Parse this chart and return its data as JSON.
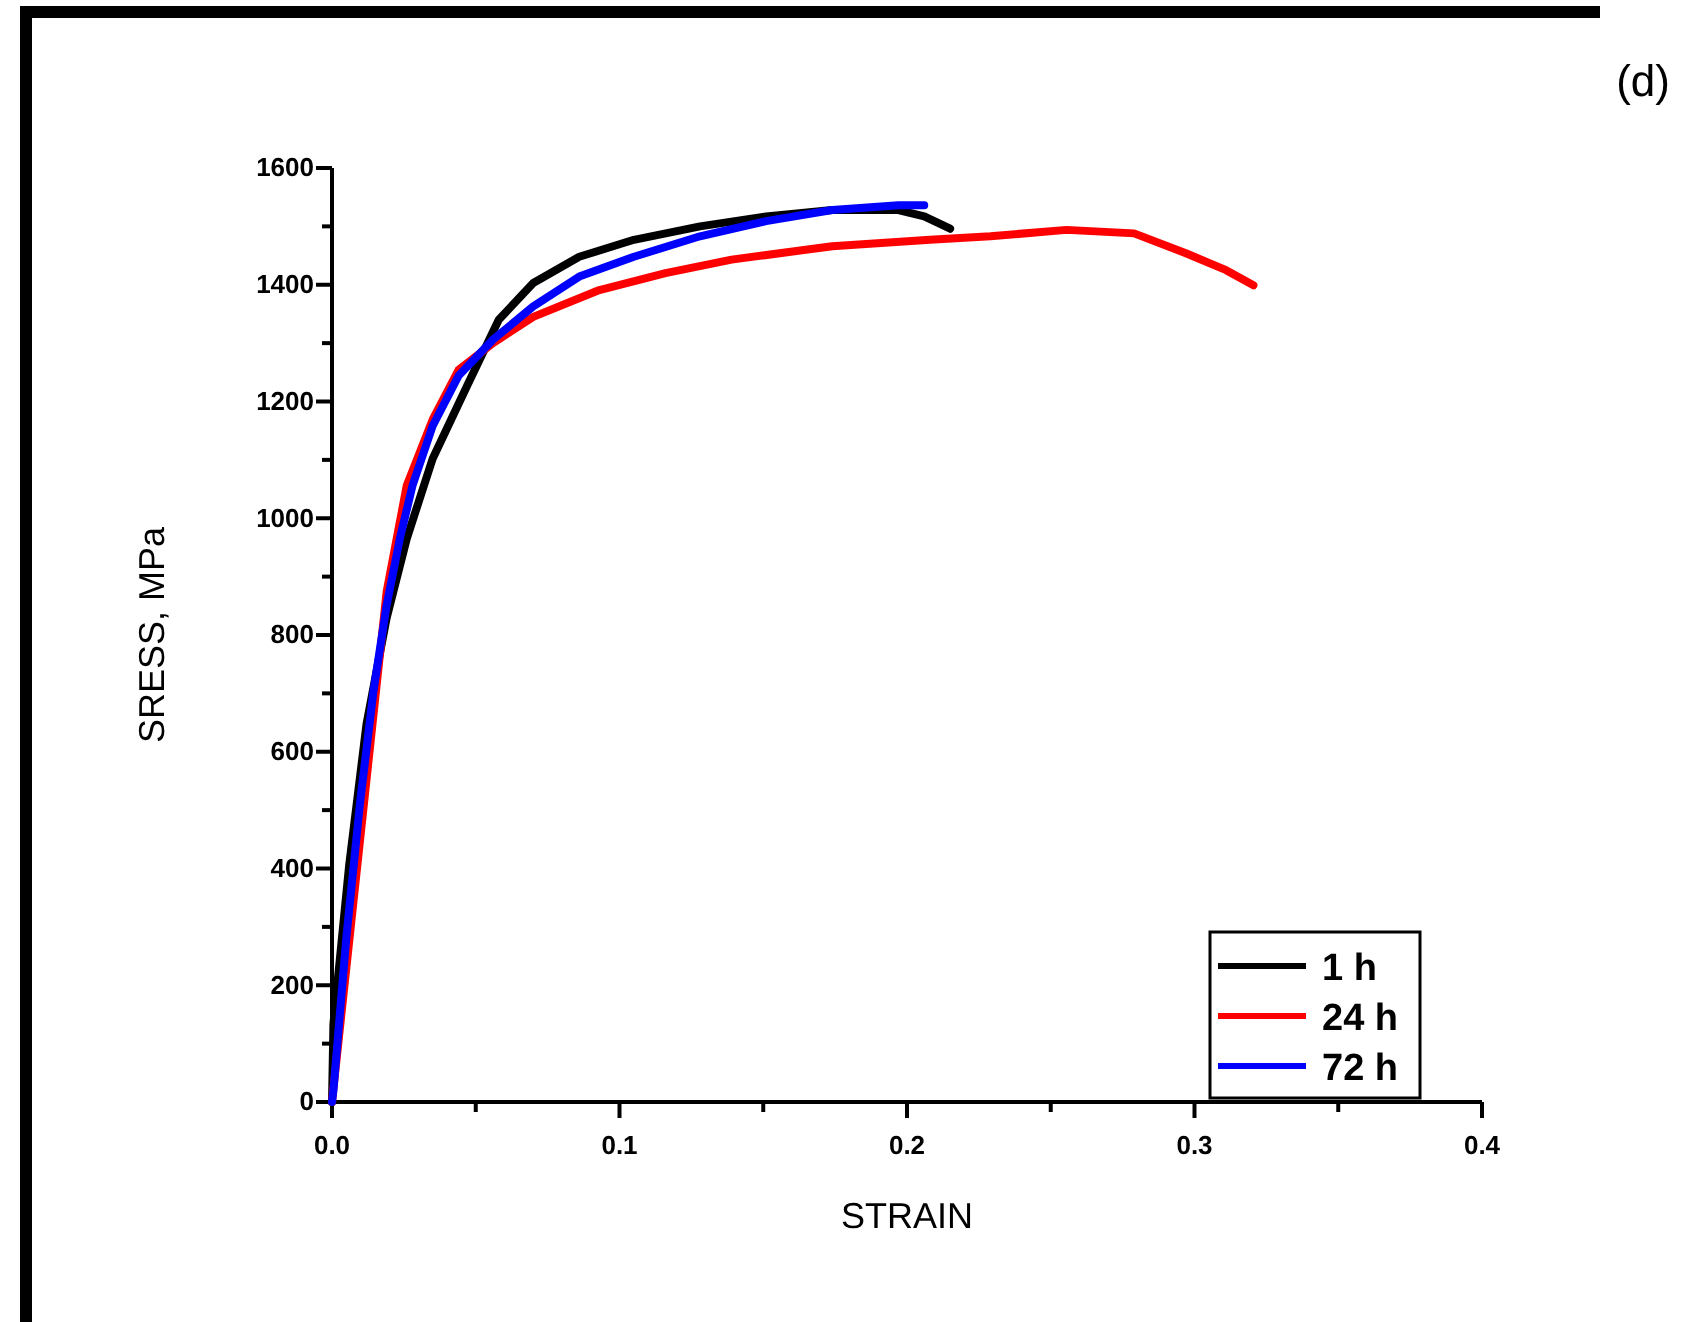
{
  "chart_data": {
    "type": "line",
    "xlabel": "STRAIN",
    "ylabel": "SRESS, MPa",
    "annotations": [
      "(d)"
    ],
    "xlim": [
      0,
      0.4
    ],
    "ylim": [
      0,
      1600
    ],
    "xticks": [
      {
        "value": 0,
        "label": "0.0"
      },
      {
        "value": 0.05,
        "label": null
      },
      {
        "value": 0.1,
        "label": "0.1"
      },
      {
        "value": 0.15,
        "label": null
      },
      {
        "value": 0.2,
        "label": "0.2"
      },
      {
        "value": 0.25,
        "label": null
      },
      {
        "value": 0.3,
        "label": "0.3"
      },
      {
        "value": 0.35,
        "label": null
      },
      {
        "value": 0.4,
        "label": "0.4"
      }
    ],
    "yticks": [
      0,
      {
        "value": 100,
        "label": null
      },
      200,
      {
        "value": 300,
        "label": null
      },
      400,
      {
        "value": 500,
        "label": null
      },
      600,
      {
        "value": 700,
        "label": null
      },
      800,
      {
        "value": 900,
        "label": null
      },
      1000,
      {
        "value": 1100,
        "label": null
      },
      1200,
      {
        "value": 1300,
        "label": null
      },
      1400,
      {
        "value": 1500,
        "label": null
      },
      1600
    ],
    "grid": false,
    "legend": "bottom right",
    "marker": "none",
    "line_style": "solid",
    "series": [
      {
        "name": "1 h",
        "color": "#000000",
        "x": [
          0,
          0.0005,
          0.006,
          0.012,
          0.019,
          0.026,
          0.035,
          0.047,
          0.058,
          0.07,
          0.086,
          0.105,
          0.128,
          0.151,
          0.174,
          0.197,
          0.206,
          0.215
        ],
        "values": [
          0,
          134,
          407,
          647,
          829,
          965,
          1102,
          1227,
          1340,
          1403,
          1448,
          1477,
          1500,
          1517,
          1528,
          1528,
          1517,
          1496
        ]
      },
      {
        "name": "24 h",
        "color": "#ff0000",
        "x": [
          0,
          0.019,
          0.026,
          0.035,
          0.044,
          0.056,
          0.07,
          0.093,
          0.116,
          0.139,
          0.174,
          0.208,
          0.229,
          0.2555,
          0.279,
          0.297,
          0.311,
          0.3205
        ],
        "values": [
          0,
          874,
          1056,
          1169,
          1254,
          1300,
          1345,
          1391,
          1420,
          1443,
          1466,
          1477,
          1483,
          1494,
          1488,
          1454,
          1425,
          1399
        ]
      },
      {
        "name": "72 h",
        "color": "#0000ff",
        "x": [
          0,
          0.0005,
          0.005,
          0.0097,
          0.0144,
          0.019,
          0.0236,
          0.028,
          0.035,
          0.044,
          0.056,
          0.07,
          0.086,
          0.105,
          0.128,
          0.151,
          0.174,
          0.197,
          0.206
        ],
        "values": [
          0,
          20,
          282,
          510,
          703,
          851,
          965,
          1056,
          1158,
          1244,
          1306,
          1363,
          1414,
          1448,
          1483,
          1509,
          1528,
          1536,
          1536
        ]
      }
    ]
  }
}
